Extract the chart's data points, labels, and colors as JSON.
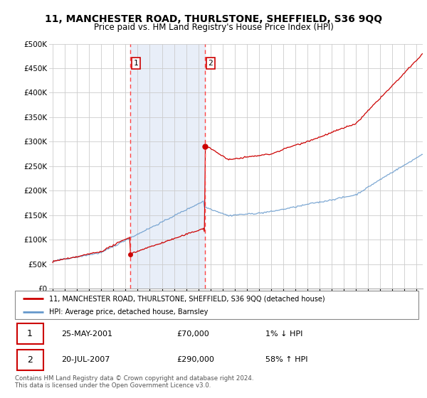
{
  "title": "11, MANCHESTER ROAD, THURLSTONE, SHEFFIELD, S36 9QQ",
  "subtitle": "Price paid vs. HM Land Registry's House Price Index (HPI)",
  "title_fontsize": 10,
  "subtitle_fontsize": 8.5,
  "ylabel_ticks": [
    "£0",
    "£50K",
    "£100K",
    "£150K",
    "£200K",
    "£250K",
    "£300K",
    "£350K",
    "£400K",
    "£450K",
    "£500K"
  ],
  "ytick_values": [
    0,
    50000,
    100000,
    150000,
    200000,
    250000,
    300000,
    350000,
    400000,
    450000,
    500000
  ],
  "ylim": [
    0,
    500000
  ],
  "xlim_start": 1994.7,
  "xlim_end": 2025.5,
  "hpi_color": "#6699CC",
  "price_color": "#CC0000",
  "background_color": "#ffffff",
  "grid_color": "#cccccc",
  "purchase_1_x": 2001.39,
  "purchase_1_y": 70000,
  "purchase_2_x": 2007.55,
  "purchase_2_y": 290000,
  "vline_color": "#FF4444",
  "vline_style": "--",
  "legend_label_red": "11, MANCHESTER ROAD, THURLSTONE, SHEFFIELD, S36 9QQ (detached house)",
  "legend_label_blue": "HPI: Average price, detached house, Barnsley",
  "annotation_1_label": "1",
  "annotation_2_label": "2",
  "table_row1": [
    "1",
    "25-MAY-2001",
    "£70,000",
    "1% ↓ HPI"
  ],
  "table_row2": [
    "2",
    "20-JUL-2007",
    "£290,000",
    "58% ↑ HPI"
  ],
  "footer": "Contains HM Land Registry data © Crown copyright and database right 2024.\nThis data is licensed under the Open Government Licence v3.0.",
  "highlight_color": "#E8EEF8",
  "seed": 42
}
